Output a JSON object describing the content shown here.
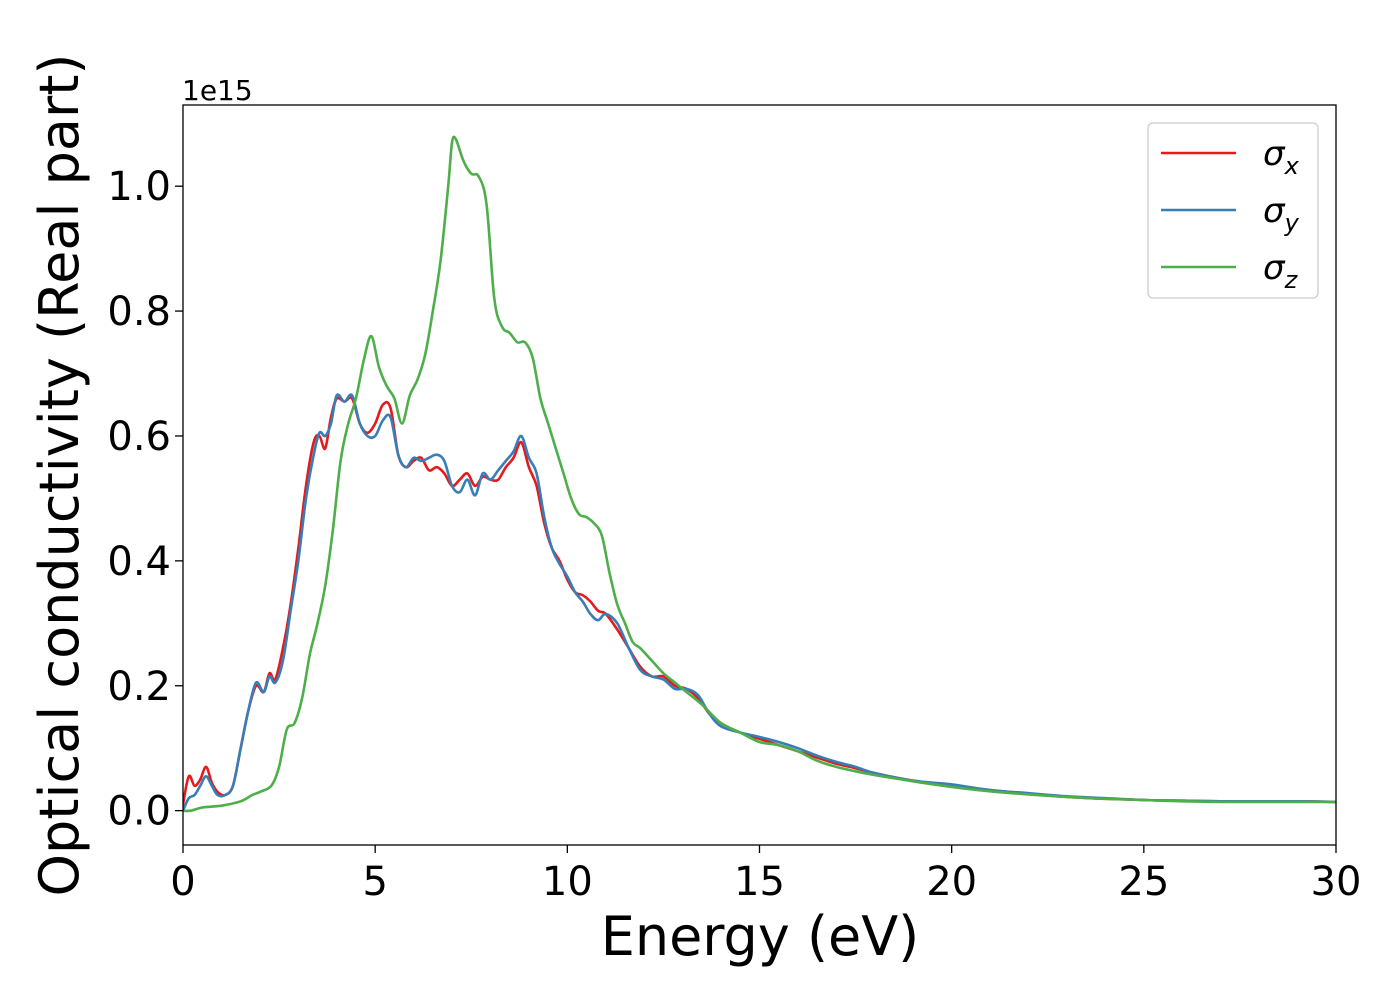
{
  "chart_data": {
    "type": "line",
    "xlabel": "Energy (eV)",
    "ylabel": "Optical conductivity (Real part)",
    "y_offset_label": "1e15",
    "xlim": [
      0,
      30
    ],
    "ylim": [
      -0.055,
      1.13
    ],
    "x_ticks": [
      0,
      5,
      10,
      15,
      20,
      25,
      30
    ],
    "x_tick_labels": [
      "0",
      "5",
      "10",
      "15",
      "20",
      "25",
      "30"
    ],
    "y_ticks": [
      0.0,
      0.2,
      0.4,
      0.6,
      0.8,
      1.0
    ],
    "y_tick_labels": [
      "0.0",
      "0.2",
      "0.4",
      "0.6",
      "0.8",
      "1.0"
    ],
    "grid": false,
    "legend_position": "top-right",
    "series": [
      {
        "name": "σx",
        "symbol": "σ",
        "subscript": "x",
        "color": "#e41a1c",
        "x": [
          0,
          0.15,
          0.3,
          0.45,
          0.6,
          0.75,
          0.9,
          1.1,
          1.3,
          1.5,
          1.7,
          1.9,
          2.1,
          2.25,
          2.4,
          2.6,
          2.8,
          3.0,
          3.2,
          3.4,
          3.55,
          3.7,
          3.85,
          4.0,
          4.2,
          4.4,
          4.6,
          4.8,
          5.0,
          5.2,
          5.4,
          5.6,
          5.8,
          6.0,
          6.2,
          6.4,
          6.6,
          6.8,
          7.0,
          7.2,
          7.4,
          7.6,
          7.8,
          8.0,
          8.2,
          8.4,
          8.6,
          8.8,
          9.0,
          9.2,
          9.4,
          9.6,
          9.8,
          10.0,
          10.2,
          10.4,
          10.6,
          10.8,
          11.0,
          11.3,
          11.6,
          11.9,
          12.2,
          12.5,
          12.8,
          13.1,
          13.4,
          13.7,
          14.0,
          14.5,
          15.0,
          15.5,
          16.0,
          16.5,
          17.0,
          17.5,
          18.0,
          19.0,
          20.0,
          21.0,
          22.0,
          23.0,
          24.0,
          25.0,
          26.0,
          27.0,
          28.0,
          29.0,
          30.0
        ],
        "y": [
          0.01,
          0.055,
          0.04,
          0.05,
          0.07,
          0.045,
          0.03,
          0.025,
          0.04,
          0.1,
          0.16,
          0.2,
          0.19,
          0.22,
          0.21,
          0.26,
          0.33,
          0.42,
          0.52,
          0.59,
          0.6,
          0.58,
          0.63,
          0.66,
          0.655,
          0.66,
          0.62,
          0.605,
          0.62,
          0.65,
          0.645,
          0.57,
          0.55,
          0.56,
          0.565,
          0.545,
          0.55,
          0.54,
          0.52,
          0.53,
          0.54,
          0.52,
          0.535,
          0.53,
          0.53,
          0.55,
          0.565,
          0.59,
          0.55,
          0.52,
          0.46,
          0.42,
          0.4,
          0.37,
          0.35,
          0.345,
          0.335,
          0.32,
          0.315,
          0.29,
          0.26,
          0.23,
          0.215,
          0.215,
          0.2,
          0.195,
          0.18,
          0.155,
          0.14,
          0.125,
          0.115,
          0.105,
          0.095,
          0.085,
          0.075,
          0.068,
          0.06,
          0.048,
          0.04,
          0.033,
          0.027,
          0.022,
          0.019,
          0.017,
          0.016,
          0.015,
          0.015,
          0.015,
          0.014
        ]
      },
      {
        "name": "σy",
        "symbol": "σ",
        "subscript": "y",
        "color": "#377eb8",
        "x": [
          0,
          0.15,
          0.3,
          0.45,
          0.6,
          0.75,
          0.9,
          1.1,
          1.3,
          1.5,
          1.7,
          1.9,
          2.1,
          2.25,
          2.4,
          2.6,
          2.8,
          3.0,
          3.2,
          3.4,
          3.55,
          3.7,
          3.85,
          4.0,
          4.2,
          4.4,
          4.6,
          4.8,
          5.0,
          5.2,
          5.4,
          5.6,
          5.8,
          6.0,
          6.2,
          6.4,
          6.6,
          6.8,
          7.0,
          7.2,
          7.4,
          7.6,
          7.8,
          8.0,
          8.2,
          8.4,
          8.6,
          8.8,
          9.0,
          9.2,
          9.4,
          9.6,
          9.8,
          10.0,
          10.2,
          10.4,
          10.6,
          10.8,
          11.0,
          11.3,
          11.6,
          11.9,
          12.2,
          12.5,
          12.8,
          13.1,
          13.4,
          13.7,
          14.0,
          14.5,
          15.0,
          15.5,
          16.0,
          16.5,
          17.0,
          17.5,
          18.0,
          19.0,
          20.0,
          21.0,
          22.0,
          23.0,
          24.0,
          25.0,
          26.0,
          27.0,
          28.0,
          29.0,
          30.0
        ],
        "y": [
          0.0,
          0.02,
          0.025,
          0.04,
          0.055,
          0.04,
          0.025,
          0.025,
          0.04,
          0.1,
          0.16,
          0.205,
          0.19,
          0.215,
          0.205,
          0.24,
          0.32,
          0.4,
          0.5,
          0.57,
          0.605,
          0.6,
          0.62,
          0.665,
          0.655,
          0.665,
          0.62,
          0.6,
          0.6,
          0.625,
          0.63,
          0.57,
          0.55,
          0.565,
          0.56,
          0.565,
          0.57,
          0.56,
          0.52,
          0.51,
          0.53,
          0.505,
          0.54,
          0.53,
          0.545,
          0.56,
          0.575,
          0.6,
          0.565,
          0.54,
          0.47,
          0.42,
          0.395,
          0.375,
          0.35,
          0.335,
          0.315,
          0.305,
          0.315,
          0.3,
          0.26,
          0.225,
          0.215,
          0.21,
          0.195,
          0.195,
          0.185,
          0.155,
          0.135,
          0.125,
          0.118,
          0.11,
          0.1,
          0.088,
          0.078,
          0.07,
          0.06,
          0.048,
          0.042,
          0.033,
          0.028,
          0.023,
          0.02,
          0.017,
          0.016,
          0.015,
          0.015,
          0.015,
          0.014
        ]
      },
      {
        "name": "σz",
        "symbol": "σ",
        "subscript": "z",
        "color": "#4daf4a",
        "x": [
          0,
          0.2,
          0.5,
          1.0,
          1.5,
          1.8,
          2.0,
          2.3,
          2.5,
          2.7,
          2.9,
          3.1,
          3.3,
          3.5,
          3.7,
          3.9,
          4.1,
          4.3,
          4.5,
          4.7,
          4.9,
          5.1,
          5.3,
          5.5,
          5.7,
          5.9,
          6.1,
          6.3,
          6.5,
          6.7,
          6.9,
          7.0,
          7.1,
          7.3,
          7.5,
          7.7,
          7.9,
          8.1,
          8.3,
          8.5,
          8.7,
          8.9,
          9.1,
          9.3,
          9.5,
          9.7,
          9.9,
          10.1,
          10.3,
          10.5,
          10.7,
          10.9,
          11.1,
          11.3,
          11.5,
          11.7,
          11.9,
          12.2,
          12.5,
          12.8,
          13.1,
          13.5,
          14.0,
          14.5,
          15.0,
          15.5,
          16.0,
          16.5,
          17.0,
          17.5,
          18.0,
          19.0,
          20.0,
          21.0,
          22.0,
          23.0,
          24.0,
          25.0,
          26.0,
          27.0,
          28.0,
          29.0,
          30.0
        ],
        "y": [
          0.0,
          0.0,
          0.005,
          0.008,
          0.015,
          0.025,
          0.03,
          0.04,
          0.07,
          0.13,
          0.14,
          0.18,
          0.25,
          0.3,
          0.36,
          0.45,
          0.56,
          0.62,
          0.66,
          0.72,
          0.76,
          0.71,
          0.68,
          0.66,
          0.62,
          0.665,
          0.69,
          0.73,
          0.8,
          0.88,
          1.0,
          1.07,
          1.075,
          1.04,
          1.02,
          1.015,
          0.97,
          0.82,
          0.775,
          0.765,
          0.75,
          0.75,
          0.725,
          0.66,
          0.62,
          0.58,
          0.54,
          0.5,
          0.475,
          0.47,
          0.46,
          0.44,
          0.38,
          0.33,
          0.3,
          0.27,
          0.26,
          0.24,
          0.22,
          0.205,
          0.19,
          0.17,
          0.14,
          0.125,
          0.11,
          0.105,
          0.095,
          0.08,
          0.07,
          0.063,
          0.057,
          0.047,
          0.038,
          0.031,
          0.026,
          0.022,
          0.019,
          0.017,
          0.015,
          0.014,
          0.014,
          0.014,
          0.014
        ]
      }
    ]
  }
}
